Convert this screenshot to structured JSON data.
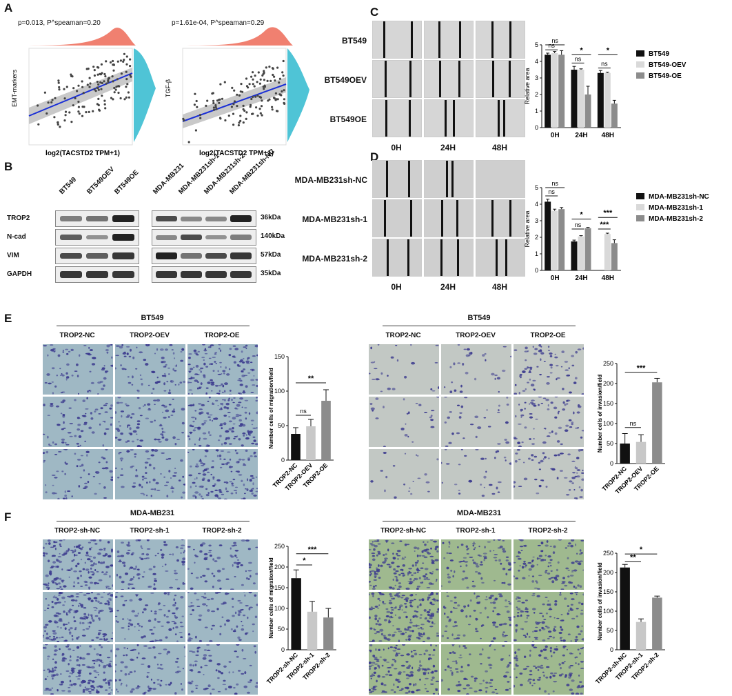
{
  "panels": {
    "A": "A",
    "B": "B",
    "C": "C",
    "D": "D",
    "E": "E",
    "F": "F"
  },
  "panel_a": {
    "left": {
      "stat": "p=0.013, P^speaman=0.20",
      "ylabel": "EMT-markers",
      "xlabel": "log2(TACSTD2 TPM+1)"
    },
    "right": {
      "stat": "p=1.61e-04, P^speaman=0.29",
      "ylabel": "TGF-β",
      "xlabel": "log2(TACSTD2 TPM+1)"
    },
    "colors": {
      "top_density": "#f08070",
      "side_density": "#4fc4d6",
      "line": "#1a2fd6",
      "ci": "#bbbbbb"
    }
  },
  "panel_b": {
    "lanes_left": [
      "BT549",
      "BT549OEV",
      "BT549OE"
    ],
    "lanes_right": [
      "MDA-MB231",
      "MDA-MB231sh-1",
      "MDA-MB231sh-2",
      "MDA-MB231sh-NC"
    ],
    "rows": [
      {
        "name": "TROP2",
        "kda": "36kDa"
      },
      {
        "name": "N-cad",
        "kda": "140kDa"
      },
      {
        "name": "VIM",
        "kda": "57kDa"
      },
      {
        "name": "GAPDH",
        "kda": "35kDa"
      }
    ]
  },
  "panel_c": {
    "rows": [
      "BT549",
      "BT549OEV",
      "BT549OE"
    ],
    "times": [
      "0H",
      "24H",
      "48H"
    ]
  },
  "panel_d": {
    "rows": [
      "MDA-MB231sh-NC",
      "MDA-MB231sh-1",
      "MDA-MB231sh-2"
    ],
    "times": [
      "0H",
      "24H",
      "48H"
    ]
  },
  "panel_e": {
    "left": {
      "title": "BT549",
      "cols": [
        "TROP2-NC",
        "TROP2-OEV",
        "TROP2-OE"
      ]
    },
    "right": {
      "title": "BT549",
      "cols": [
        "TROP2-NC",
        "TROP2-OEV",
        "TROP2-OE"
      ]
    }
  },
  "panel_f": {
    "left": {
      "title": "MDA-MB231",
      "cols": [
        "TROP2-sh-NC",
        "TROP2-sh-1",
        "TROP2-sh-2"
      ]
    },
    "right": {
      "title": "MDA-MB231",
      "cols": [
        "TROP2-sh-NC",
        "TROP2-sh-1",
        "TROP2-sh-2"
      ]
    }
  },
  "chart_data": [
    {
      "id": "C",
      "type": "bar",
      "categories": [
        "0H",
        "24H",
        "48H"
      ],
      "ylabel": "Relative area",
      "ylim": [
        0,
        5
      ],
      "yticks": [
        0,
        1,
        2,
        3,
        4,
        5
      ],
      "series": [
        {
          "name": "BT549",
          "color": "#111111",
          "values": [
            4.4,
            3.5,
            3.3
          ],
          "err": [
            0.1,
            0.2,
            0.15
          ]
        },
        {
          "name": "BT549-OEV",
          "color": "#d9d9d9",
          "values": [
            4.5,
            3.5,
            3.3
          ],
          "err": [
            0.1,
            0.05,
            0.05
          ]
        },
        {
          "name": "BT549-OE",
          "color": "#8c8c8c",
          "values": [
            4.4,
            2.0,
            1.45
          ],
          "err": [
            0.25,
            0.5,
            0.2
          ]
        }
      ],
      "sig": [
        {
          "cat": 0,
          "a": 0,
          "b": 1,
          "label": "ns",
          "level": 4.7
        },
        {
          "cat": 0,
          "a": 0,
          "b": 2,
          "label": "ns",
          "level": 5.0
        },
        {
          "cat": 1,
          "a": 0,
          "b": 1,
          "label": "ns",
          "level": 3.9
        },
        {
          "cat": 1,
          "a": 0,
          "b": 2,
          "label": "*",
          "level": 4.4
        },
        {
          "cat": 2,
          "a": 0,
          "b": 1,
          "label": "ns",
          "level": 3.6
        },
        {
          "cat": 2,
          "a": 0,
          "b": 2,
          "label": "*",
          "level": 4.4
        }
      ],
      "legend": "right"
    },
    {
      "id": "D",
      "type": "bar",
      "categories": [
        "0H",
        "24H",
        "48H"
      ],
      "ylabel": "Relative area",
      "ylim": [
        0,
        5
      ],
      "yticks": [
        0,
        1,
        2,
        3,
        4,
        5
      ],
      "series": [
        {
          "name": "MDA-MB231sh-NC",
          "color": "#111111",
          "values": [
            4.15,
            1.75,
            0
          ],
          "err": [
            0.15,
            0.08,
            0
          ]
        },
        {
          "name": "MDA-MB231sh-1",
          "color": "#d9d9d9",
          "values": [
            3.6,
            2.05,
            2.2
          ],
          "err": [
            0.1,
            0.05,
            0.05
          ]
        },
        {
          "name": "MDA-MB231sh-2",
          "color": "#8c8c8c",
          "values": [
            3.7,
            2.55,
            1.65
          ],
          "err": [
            0.1,
            0.05,
            0.2
          ]
        }
      ],
      "sig": [
        {
          "cat": 0,
          "a": 0,
          "b": 1,
          "label": "ns",
          "level": 4.5
        },
        {
          "cat": 0,
          "a": 0,
          "b": 2,
          "label": "ns",
          "level": 5.0
        },
        {
          "cat": 1,
          "a": 0,
          "b": 1,
          "label": "ns",
          "level": 2.5
        },
        {
          "cat": 1,
          "a": 0,
          "b": 2,
          "label": "*",
          "level": 3.1
        },
        {
          "cat": 2,
          "a": 0,
          "b": 1,
          "label": "***",
          "level": 2.5
        },
        {
          "cat": 2,
          "a": 0,
          "b": 2,
          "label": "***",
          "level": 3.2
        }
      ],
      "legend": "right"
    },
    {
      "id": "E1",
      "type": "bar",
      "categories": [
        "TROP2-NC",
        "TROP2-OEV",
        "TROP2-OE"
      ],
      "ylabel": "Number cells of migration/field",
      "ylim": [
        0,
        150
      ],
      "yticks": [
        0,
        50,
        100,
        150
      ],
      "series": [
        {
          "name": "",
          "values": [
            38,
            49,
            86
          ],
          "err": [
            9,
            10,
            16
          ],
          "colors": [
            "#111111",
            "#c8c8c8",
            "#8c8c8c"
          ]
        }
      ],
      "sig": [
        {
          "a": 0,
          "b": 1,
          "label": "ns",
          "level": 65
        },
        {
          "a": 0,
          "b": 2,
          "label": "**",
          "level": 112
        }
      ]
    },
    {
      "id": "E2",
      "type": "bar",
      "categories": [
        "TROP2-NC",
        "TROP2-OEV",
        "TROP2-OE"
      ],
      "ylabel": "Number cells of invasion/field",
      "ylim": [
        0,
        250
      ],
      "yticks": [
        0,
        50,
        100,
        150,
        200,
        250
      ],
      "series": [
        {
          "name": "",
          "values": [
            50,
            54,
            203
          ],
          "err": [
            25,
            18,
            10
          ],
          "colors": [
            "#111111",
            "#c8c8c8",
            "#8c8c8c"
          ]
        }
      ],
      "sig": [
        {
          "a": 0,
          "b": 1,
          "label": "ns",
          "level": 90
        },
        {
          "a": 0,
          "b": 2,
          "label": "***",
          "level": 228
        }
      ]
    },
    {
      "id": "F1",
      "type": "bar",
      "categories": [
        "TROP2-sh-NC",
        "TROP2-sh-1",
        "TROP2-sh-2"
      ],
      "ylabel": "Number cells of migration/field",
      "ylim": [
        0,
        250
      ],
      "yticks": [
        0,
        50,
        100,
        150,
        200,
        250
      ],
      "series": [
        {
          "name": "",
          "values": [
            173,
            92,
            78
          ],
          "err": [
            20,
            25,
            22
          ],
          "colors": [
            "#111111",
            "#c8c8c8",
            "#8c8c8c"
          ]
        }
      ],
      "sig": [
        {
          "a": 0,
          "b": 1,
          "label": "*",
          "level": 205
        },
        {
          "a": 0,
          "b": 2,
          "label": "***",
          "level": 232
        }
      ]
    },
    {
      "id": "F2",
      "type": "bar",
      "categories": [
        "TROP2-sh-NC",
        "TROP2-sh-1",
        "TROP2-sh-2"
      ],
      "ylabel": "Number cells of invasion/field",
      "ylim": [
        0,
        250
      ],
      "yticks": [
        0,
        50,
        100,
        150,
        200,
        250
      ],
      "series": [
        {
          "name": "",
          "values": [
            213,
            72,
            135
          ],
          "err": [
            8,
            8,
            4
          ],
          "colors": [
            "#111111",
            "#c8c8c8",
            "#8c8c8c"
          ]
        }
      ],
      "sig": [
        {
          "a": 0,
          "b": 1,
          "label": "**",
          "level": 228
        },
        {
          "a": 0,
          "b": 2,
          "label": "*",
          "level": 248
        }
      ]
    }
  ]
}
